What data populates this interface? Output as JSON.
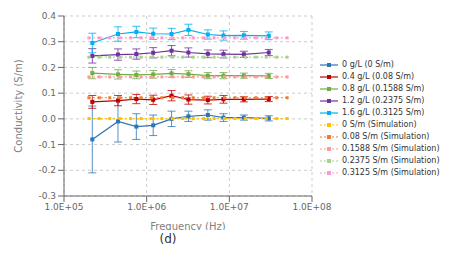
{
  "chart_data": {
    "type": "line",
    "title": "(d)",
    "xlabel": "Frequency (Hz)",
    "ylabel": "Conductivity (S/m)",
    "log": "x",
    "grid": true,
    "legend": "right",
    "xlim": [
      100000,
      100000000
    ],
    "xticks": [
      {
        "value": 100000,
        "label": "1.0E+05"
      },
      {
        "value": 1000000,
        "label": "1.0E+06"
      },
      {
        "value": 10000000,
        "label": "1.0E+07"
      },
      {
        "value": 100000000,
        "label": "1.0E+08"
      }
    ],
    "ylim": [
      -0.3,
      0.4
    ],
    "yticks": [
      -0.3,
      -0.2,
      -0.1,
      {
        "value": 0,
        "label": "0.0"
      },
      0.1,
      0.2,
      0.3,
      0.4
    ],
    "series": [
      {
        "name": "0 g/L (0 S/m)",
        "color": "#2E75B6",
        "marker": "square",
        "line_style": "solid",
        "x": [
          220000,
          450000,
          750000,
          1200000,
          2000000,
          3200000,
          5500000,
          8500000,
          15000000,
          30000000
        ],
        "values": [
          -0.08,
          -0.01,
          -0.03,
          -0.025,
          0.0,
          0.01,
          0.015,
          0.005,
          0.005,
          0.002
        ],
        "errors": [
          0.13,
          0.08,
          0.05,
          0.04,
          0.03,
          0.02,
          0.02,
          0.015,
          0.01,
          0.01
        ]
      },
      {
        "name": "0.4 g/L (0.08 S/m)",
        "color": "#C00000",
        "marker": "square",
        "line_style": "solid",
        "x": [
          220000,
          450000,
          750000,
          1200000,
          2000000,
          3200000,
          5500000,
          8500000,
          15000000,
          30000000
        ],
        "values": [
          0.066,
          0.071,
          0.077,
          0.074,
          0.09,
          0.075,
          0.073,
          0.076,
          0.076,
          0.077
        ],
        "errors": [
          0.025,
          0.02,
          0.018,
          0.018,
          0.02,
          0.018,
          0.015,
          0.015,
          0.01,
          0.01
        ]
      },
      {
        "name": "0.8 g/L (0.1588 S/m)",
        "color": "#70AD47",
        "marker": "square",
        "line_style": "solid",
        "x": [
          220000,
          450000,
          750000,
          1200000,
          2000000,
          3200000,
          5500000,
          8500000,
          15000000,
          30000000
        ],
        "values": [
          0.178,
          0.173,
          0.171,
          0.173,
          0.177,
          0.174,
          0.168,
          0.168,
          0.168,
          0.167
        ],
        "errors": [
          0.022,
          0.018,
          0.015,
          0.015,
          0.015,
          0.013,
          0.012,
          0.012,
          0.01,
          0.01
        ]
      },
      {
        "name": "1.2 g/L (0.2375 S/m)",
        "color": "#7030A0",
        "marker": "square",
        "line_style": "solid",
        "x": [
          220000,
          450000,
          750000,
          1200000,
          2000000,
          3200000,
          5500000,
          8500000,
          15000000,
          30000000
        ],
        "values": [
          0.245,
          0.25,
          0.252,
          0.257,
          0.265,
          0.258,
          0.253,
          0.252,
          0.251,
          0.258
        ],
        "errors": [
          0.028,
          0.022,
          0.02,
          0.02,
          0.02,
          0.018,
          0.015,
          0.015,
          0.012,
          0.012
        ]
      },
      {
        "name": "1.6 g/L (0.3125 S/m)",
        "color": "#00B0F0",
        "marker": "square",
        "line_style": "solid",
        "x": [
          220000,
          450000,
          750000,
          1200000,
          2000000,
          3200000,
          5500000,
          8500000,
          15000000,
          30000000
        ],
        "values": [
          0.295,
          0.33,
          0.338,
          0.331,
          0.33,
          0.346,
          0.328,
          0.324,
          0.325,
          0.323
        ],
        "errors": [
          0.038,
          0.028,
          0.022,
          0.022,
          0.022,
          0.022,
          0.018,
          0.018,
          0.015,
          0.015
        ]
      },
      {
        "name": "0 S/m (Simulation)",
        "color": "#FFC000",
        "marker": "square",
        "line_style": "dotted",
        "x": [
          200000,
          267447,
          357639,
          478246,
          639527,
          855196,
          1143597,
          1529256,
          2044973,
          2734605,
          3656804,
          4890000,
          6539073,
          8744266,
          11693120,
          15636428,
          20909570,
          27960964,
          37390328,
          50000000
        ],
        "values": [
          0.001,
          0.001,
          0.001,
          0.001,
          0.001,
          0.001,
          0.001,
          0.001,
          0.001,
          0.001,
          0.001,
          0.001,
          0.001,
          0.001,
          0.001,
          0.001,
          0.001,
          0.001,
          0.001,
          0.001
        ]
      },
      {
        "name": "0.08 S/m (Simulation)",
        "color": "#ED7D31",
        "marker": "square",
        "line_style": "dotted",
        "x": [
          200000,
          267447,
          357639,
          478246,
          639527,
          855196,
          1143597,
          1529256,
          2044973,
          2734605,
          3656804,
          4890000,
          6539073,
          8744266,
          11693120,
          15636428,
          20909570,
          27960964,
          37390328,
          50000000
        ],
        "values": [
          0.082,
          0.082,
          0.082,
          0.082,
          0.082,
          0.082,
          0.082,
          0.082,
          0.082,
          0.082,
          0.082,
          0.082,
          0.082,
          0.082,
          0.082,
          0.082,
          0.082,
          0.082,
          0.082,
          0.082
        ]
      },
      {
        "name": "0.1588 S/m (Simulation)",
        "color": "#FF9999",
        "marker": "square",
        "line_style": "dotted",
        "x": [
          200000,
          267447,
          357639,
          478246,
          639527,
          855196,
          1143597,
          1529256,
          2044973,
          2734605,
          3656804,
          4890000,
          6539073,
          8744266,
          11693120,
          15636428,
          20909570,
          27960964,
          37390328,
          50000000
        ],
        "values": [
          0.163,
          0.163,
          0.163,
          0.163,
          0.163,
          0.163,
          0.163,
          0.163,
          0.163,
          0.163,
          0.163,
          0.163,
          0.163,
          0.163,
          0.163,
          0.163,
          0.163,
          0.163,
          0.163,
          0.163
        ]
      },
      {
        "name": "0.2375 S/m (Simulation)",
        "color": "#A9D18E",
        "marker": "square",
        "line_style": "dotted",
        "x": [
          200000,
          267447,
          357639,
          478246,
          639527,
          855196,
          1143597,
          1529256,
          2044973,
          2734605,
          3656804,
          4890000,
          6539073,
          8744266,
          11693120,
          15636428,
          20909570,
          27960964,
          37390328,
          50000000
        ],
        "values": [
          0.24,
          0.24,
          0.24,
          0.24,
          0.24,
          0.24,
          0.24,
          0.24,
          0.24,
          0.24,
          0.24,
          0.24,
          0.24,
          0.24,
          0.24,
          0.24,
          0.24,
          0.24,
          0.24,
          0.24
        ]
      },
      {
        "name": "0.3125 S/m (Simulation)",
        "color": "#FF99CC",
        "marker": "square",
        "line_style": "dotted",
        "x": [
          200000,
          267447,
          357639,
          478246,
          639527,
          855196,
          1143597,
          1529256,
          2044973,
          2734605,
          3656804,
          4890000,
          6539073,
          8744266,
          11693120,
          15636428,
          20909570,
          27960964,
          37390328,
          50000000
        ],
        "values": [
          0.315,
          0.315,
          0.315,
          0.315,
          0.315,
          0.315,
          0.315,
          0.315,
          0.315,
          0.315,
          0.315,
          0.315,
          0.315,
          0.315,
          0.315,
          0.315,
          0.315,
          0.315,
          0.315,
          0.315
        ]
      }
    ]
  }
}
